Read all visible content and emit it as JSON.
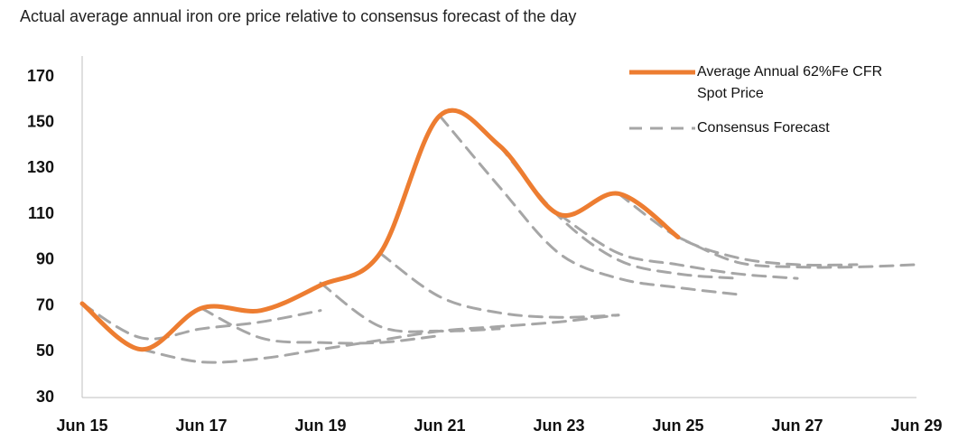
{
  "chart_data": {
    "type": "line",
    "title": "Actual average annual iron ore price relative to consensus forecast of the day",
    "categories": [
      "Jun 15",
      null,
      "Jun 17",
      null,
      "Jun 19",
      null,
      "Jun 21",
      null,
      "Jun 23",
      null,
      "Jun 25",
      null,
      "Jun 27",
      null,
      "Jun 29"
    ],
    "series": [
      {
        "name": "Average Annual 62%Fe CFR Spot Price",
        "color": "#ed7d31",
        "values": [
          71,
          51,
          69,
          68,
          79,
          93,
          153,
          140,
          110,
          119,
          100,
          null,
          null,
          null,
          null
        ]
      },
      {
        "name": "Consensus Forecast",
        "color": "#a6a6a6",
        "dashed": true,
        "forecasts": [
          [
            71,
            56,
            60,
            63,
            68,
            null,
            null,
            null,
            null,
            null,
            null,
            null,
            null,
            null,
            null
          ],
          [
            null,
            51,
            45.5,
            47,
            51,
            55,
            59,
            61,
            63,
            66,
            null,
            null,
            null,
            null,
            null
          ],
          [
            null,
            null,
            69,
            56,
            54,
            54,
            57,
            null,
            null,
            null,
            null,
            null,
            null,
            null,
            null
          ],
          [
            null,
            null,
            null,
            null,
            80,
            61,
            59,
            60,
            null,
            null,
            null,
            null,
            null,
            null,
            null
          ],
          [
            null,
            null,
            null,
            null,
            null,
            93,
            74,
            67,
            65,
            66,
            null,
            null,
            null,
            null,
            null
          ],
          [
            null,
            null,
            null,
            null,
            null,
            null,
            153,
            122,
            93,
            82,
            78,
            75,
            null,
            null,
            null
          ],
          [
            null,
            null,
            null,
            null,
            null,
            null,
            null,
            140,
            109,
            90,
            84,
            82,
            null,
            null,
            null
          ],
          [
            null,
            null,
            null,
            null,
            null,
            null,
            null,
            null,
            110,
            93,
            88,
            84,
            82,
            null,
            null
          ],
          [
            null,
            null,
            null,
            null,
            null,
            null,
            null,
            null,
            null,
            119,
            100,
            91,
            88,
            88,
            null
          ],
          [
            null,
            null,
            null,
            null,
            null,
            null,
            null,
            null,
            null,
            null,
            100,
            89,
            87,
            87,
            88
          ]
        ]
      }
    ],
    "ylim": [
      30,
      170
    ],
    "yticks": [
      30,
      50,
      70,
      90,
      110,
      130,
      150,
      170
    ],
    "grid": false
  }
}
